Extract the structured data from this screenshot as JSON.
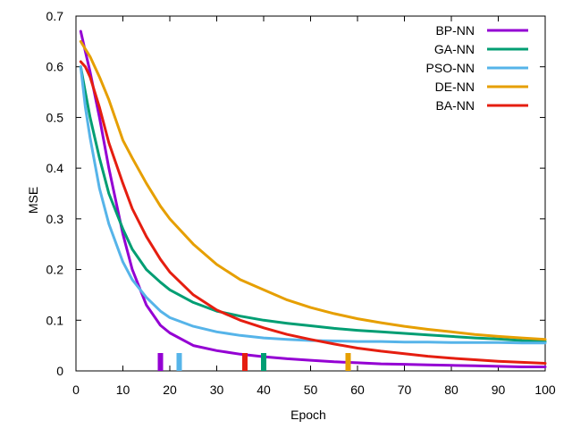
{
  "chart_data": {
    "type": "line",
    "title": "",
    "xlabel": "Epoch",
    "ylabel": "MSE",
    "xlim": [
      0,
      100
    ],
    "ylim": [
      0,
      0.7
    ],
    "xticks": [
      0,
      10,
      20,
      30,
      40,
      50,
      60,
      70,
      80,
      90,
      100
    ],
    "yticks": [
      0,
      0.1,
      0.2,
      0.3,
      0.4,
      0.5,
      0.6,
      0.7
    ],
    "xtick_labels": [
      "0",
      "10",
      "20",
      "30",
      "40",
      "50",
      "60",
      "70",
      "80",
      "90",
      "100"
    ],
    "ytick_labels": [
      "0",
      "0.1",
      "0.2",
      "0.3",
      "0.4",
      "0.5",
      "0.6",
      "0.7"
    ],
    "grid": false,
    "legend_position": "top-right",
    "x": [
      1,
      2,
      3,
      5,
      7,
      10,
      12,
      15,
      18,
      20,
      25,
      30,
      35,
      40,
      45,
      50,
      55,
      60,
      65,
      70,
      75,
      80,
      85,
      90,
      95,
      100
    ],
    "series": [
      {
        "name": "BP-NN",
        "color": "#9400d3",
        "marker_x": 18,
        "values": [
          0.67,
          0.63,
          0.59,
          0.5,
          0.4,
          0.27,
          0.2,
          0.13,
          0.09,
          0.075,
          0.05,
          0.04,
          0.033,
          0.028,
          0.024,
          0.021,
          0.018,
          0.016,
          0.014,
          0.013,
          0.012,
          0.011,
          0.01,
          0.009,
          0.008,
          0.008
        ]
      },
      {
        "name": "GA-NN",
        "color": "#009e73",
        "marker_x": 40,
        "values": [
          0.6,
          0.55,
          0.5,
          0.42,
          0.35,
          0.28,
          0.24,
          0.2,
          0.175,
          0.16,
          0.135,
          0.118,
          0.108,
          0.1,
          0.094,
          0.089,
          0.084,
          0.08,
          0.077,
          0.074,
          0.071,
          0.068,
          0.065,
          0.063,
          0.06,
          0.058
        ]
      },
      {
        "name": "PSO-NN",
        "color": "#56b4e9",
        "marker_x": 22,
        "values": [
          0.6,
          0.52,
          0.46,
          0.36,
          0.29,
          0.215,
          0.18,
          0.145,
          0.118,
          0.105,
          0.088,
          0.077,
          0.07,
          0.065,
          0.062,
          0.06,
          0.059,
          0.058,
          0.058,
          0.057,
          0.057,
          0.056,
          0.056,
          0.056,
          0.055,
          0.055
        ]
      },
      {
        "name": "DE-NN",
        "color": "#e69f00",
        "marker_x": 58,
        "values": [
          0.65,
          0.635,
          0.62,
          0.58,
          0.535,
          0.455,
          0.42,
          0.37,
          0.325,
          0.3,
          0.25,
          0.21,
          0.18,
          0.16,
          0.14,
          0.125,
          0.113,
          0.103,
          0.095,
          0.088,
          0.082,
          0.077,
          0.072,
          0.068,
          0.065,
          0.062
        ]
      },
      {
        "name": "BA-NN",
        "color": "#e51e10",
        "marker_x": 36,
        "values": [
          0.61,
          0.6,
          0.58,
          0.52,
          0.45,
          0.37,
          0.32,
          0.265,
          0.22,
          0.195,
          0.15,
          0.12,
          0.1,
          0.085,
          0.072,
          0.062,
          0.053,
          0.045,
          0.039,
          0.034,
          0.029,
          0.025,
          0.022,
          0.019,
          0.017,
          0.015
        ]
      }
    ]
  }
}
